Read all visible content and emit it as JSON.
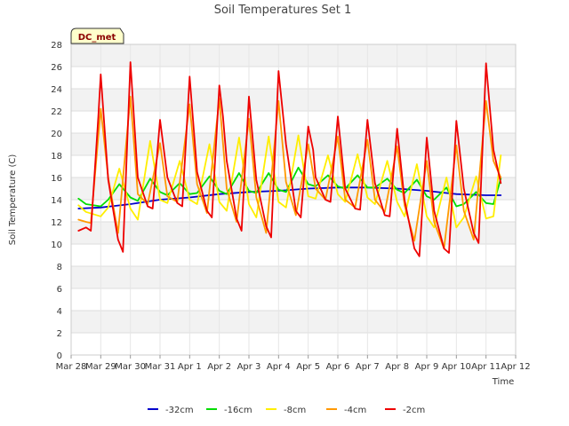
{
  "chart_data": {
    "type": "line",
    "title": "Soil Temperatures Set 1",
    "xlabel": "Time",
    "ylabel": "Soil Temperature (C)",
    "station_label": "DC_met",
    "ylim": [
      0,
      28
    ],
    "yticks": [
      0,
      2,
      4,
      6,
      8,
      10,
      12,
      14,
      16,
      18,
      20,
      22,
      24,
      26,
      28
    ],
    "xlim_days": [
      0,
      15
    ],
    "xtick_labels": [
      "Mar 28",
      "Mar 29",
      "Mar 30",
      "Mar 31",
      "Apr 1",
      "Apr 2",
      "Apr 3",
      "Apr 4",
      "Apr 5",
      "Apr 6",
      "Apr 7",
      "Apr 8",
      "Apr 9",
      "Apr 10",
      "Apr 11",
      "Apr 12"
    ],
    "grid": true,
    "legend_position": "bottom",
    "series": [
      {
        "name": "-32cm",
        "color": "#0000cc",
        "x": [
          "Mar 28 06:00",
          "Mar 29 00:00",
          "Mar 30 00:00",
          "Mar 31 00:00",
          "Apr 1 00:00",
          "Apr 2 00:00",
          "Apr 3 00:00",
          "Apr 4 00:00",
          "Apr 5 00:00",
          "Apr 6 00:00",
          "Apr 7 00:00",
          "Apr 8 00:00",
          "Apr 9 00:00",
          "Apr 10 00:00",
          "Apr 11 00:00",
          "Apr 11 12:00"
        ],
        "y": [
          13.2,
          13.3,
          13.6,
          14.0,
          14.2,
          14.5,
          14.7,
          14.8,
          15.0,
          15.1,
          15.1,
          15.0,
          14.8,
          14.5,
          14.4,
          14.4
        ]
      },
      {
        "name": "-16cm",
        "color": "#00dd00",
        "x": [
          "Mar 28 06:00",
          "Mar 28 12:00",
          "Mar 29 00:00",
          "Mar 29 06:00",
          "Mar 29 15:00",
          "Mar 30 00:00",
          "Mar 30 06:00",
          "Mar 30 16:00",
          "Mar 31 00:00",
          "Mar 31 06:00",
          "Mar 31 16:00",
          "Apr 1 00:00",
          "Apr 1 06:00",
          "Apr 1 16:00",
          "Apr 2 00:00",
          "Apr 2 06:00",
          "Apr 2 16:00",
          "Apr 3 00:00",
          "Apr 3 06:00",
          "Apr 3 16:00",
          "Apr 4 00:00",
          "Apr 4 06:00",
          "Apr 4 16:00",
          "Apr 5 00:00",
          "Apr 5 06:00",
          "Apr 5 16:00",
          "Apr 6 00:00",
          "Apr 6 06:00",
          "Apr 6 16:00",
          "Apr 7 00:00",
          "Apr 7 06:00",
          "Apr 7 16:00",
          "Apr 8 00:00",
          "Apr 8 06:00",
          "Apr 8 16:00",
          "Apr 9 00:00",
          "Apr 9 06:00",
          "Apr 9 16:00",
          "Apr 10 00:00",
          "Apr 10 06:00",
          "Apr 10 16:00",
          "Apr 11 00:00",
          "Apr 11 06:00",
          "Apr 11 12:00"
        ],
        "y": [
          14.1,
          13.6,
          13.4,
          14.0,
          15.4,
          14.2,
          13.9,
          15.9,
          14.7,
          14.4,
          15.5,
          14.5,
          14.6,
          16.1,
          14.8,
          14.5,
          16.4,
          14.8,
          14.6,
          16.4,
          14.9,
          14.7,
          16.9,
          15.4,
          15.2,
          16.2,
          15.2,
          15.0,
          16.2,
          15.1,
          15.1,
          15.9,
          14.9,
          14.6,
          15.8,
          14.3,
          14.0,
          15.1,
          13.4,
          13.6,
          14.7,
          13.7,
          13.6,
          15.9
        ]
      },
      {
        "name": "-8cm",
        "color": "#ffee00",
        "x": [
          "Mar 28 06:00",
          "Mar 28 12:00",
          "Mar 29 00:00",
          "Mar 29 06:00",
          "Mar 29 15:00",
          "Mar 30 00:00",
          "Mar 30 06:00",
          "Mar 30 16:00",
          "Mar 31 00:00",
          "Mar 31 06:00",
          "Mar 31 16:00",
          "Apr 1 00:00",
          "Apr 1 06:00",
          "Apr 1 16:00",
          "Apr 2 00:00",
          "Apr 2 06:00",
          "Apr 2 16:00",
          "Apr 3 00:00",
          "Apr 3 06:00",
          "Apr 3 16:00",
          "Apr 4 00:00",
          "Apr 4 06:00",
          "Apr 4 16:00",
          "Apr 5 00:00",
          "Apr 5 06:00",
          "Apr 5 16:00",
          "Apr 6 00:00",
          "Apr 6 06:00",
          "Apr 6 16:00",
          "Apr 7 00:00",
          "Apr 7 06:00",
          "Apr 7 16:00",
          "Apr 8 00:00",
          "Apr 8 06:00",
          "Apr 8 16:00",
          "Apr 9 00:00",
          "Apr 9 06:00",
          "Apr 9 16:00",
          "Apr 10 00:00",
          "Apr 10 06:00",
          "Apr 10 16:00",
          "Apr 11 00:00",
          "Apr 11 06:00",
          "Apr 11 12:00"
        ],
        "y": [
          13.5,
          12.9,
          12.5,
          13.3,
          16.8,
          13.2,
          12.2,
          19.3,
          14.0,
          13.7,
          17.5,
          14.0,
          13.6,
          19.0,
          13.8,
          13.0,
          19.6,
          13.6,
          12.4,
          19.7,
          13.8,
          13.3,
          19.8,
          14.3,
          14.1,
          18.0,
          14.5,
          13.8,
          18.1,
          14.2,
          13.6,
          17.5,
          13.8,
          12.5,
          17.2,
          12.5,
          11.5,
          16.0,
          11.5,
          12.4,
          16.1,
          12.3,
          12.5,
          18.0
        ]
      },
      {
        "name": "-4cm",
        "color": "#ff9900",
        "x": [
          "Mar 28 06:00",
          "Mar 28 12:00",
          "Mar 28 16:00",
          "Mar 29 00:00",
          "Mar 29 06:00",
          "Mar 29 14:00",
          "Mar 30 00:00",
          "Mar 30 06:00",
          "Mar 30 14:00",
          "Mar 31 00:00",
          "Mar 31 06:00",
          "Mar 31 14:00",
          "Apr 1 00:00",
          "Apr 1 06:00",
          "Apr 1 14:00",
          "Apr 2 00:00",
          "Apr 2 06:00",
          "Apr 2 14:00",
          "Apr 3 00:00",
          "Apr 3 06:00",
          "Apr 3 14:00",
          "Apr 4 00:00",
          "Apr 4 06:00",
          "Apr 4 14:00",
          "Apr 5 00:00",
          "Apr 5 06:00",
          "Apr 5 14:00",
          "Apr 6 00:00",
          "Apr 6 06:00",
          "Apr 6 14:00",
          "Apr 7 00:00",
          "Apr 7 06:00",
          "Apr 7 14:00",
          "Apr 8 00:00",
          "Apr 8 06:00",
          "Apr 8 14:00",
          "Apr 9 00:00",
          "Apr 9 06:00",
          "Apr 9 14:00",
          "Apr 10 00:00",
          "Apr 10 06:00",
          "Apr 10 14:00",
          "Apr 11 00:00",
          "Apr 11 06:00",
          "Apr 11 12:00"
        ],
        "y": [
          12.2,
          12.0,
          11.9,
          22.2,
          16.0,
          11.0,
          23.3,
          14.5,
          13.6,
          19.1,
          14.3,
          13.8,
          22.6,
          15.4,
          12.8,
          23.1,
          15.0,
          12.0,
          21.3,
          14.2,
          11.0,
          22.9,
          15.6,
          12.6,
          19.0,
          15.0,
          14.0,
          19.7,
          14.0,
          13.3,
          19.4,
          14.0,
          12.9,
          18.8,
          13.5,
          10.3,
          17.5,
          12.0,
          9.6,
          18.9,
          13.0,
          10.4,
          22.9,
          17.5,
          16.0
        ]
      },
      {
        "name": "-2cm",
        "color": "#ee0000",
        "x": [
          "Mar 28 06:00",
          "Mar 28 12:00",
          "Mar 28 16:00",
          "Mar 28 22:00",
          "Mar 29 00:00",
          "Mar 29 06:00",
          "Mar 29 14:00",
          "Mar 29 18:00",
          "Mar 30 00:00",
          "Mar 30 06:00",
          "Mar 30 14:00",
          "Mar 30 18:00",
          "Mar 31 00:00",
          "Mar 31 06:00",
          "Mar 31 14:00",
          "Mar 31 18:00",
          "Apr 1 00:00",
          "Apr 1 06:00",
          "Apr 1 14:00",
          "Apr 1 18:00",
          "Apr 2 00:00",
          "Apr 2 03:00",
          "Apr 2 06:00",
          "Apr 2 14:00",
          "Apr 2 18:00",
          "Apr 3 00:00",
          "Apr 3 06:00",
          "Apr 3 14:00",
          "Apr 3 18:00",
          "Apr 4 00:00",
          "Apr 4 06:00",
          "Apr 4 14:00",
          "Apr 4 18:00",
          "Apr 5 00:00",
          "Apr 5 04:00",
          "Apr 5 06:00",
          "Apr 5 14:00",
          "Apr 5 18:00",
          "Apr 6 00:00",
          "Apr 6 06:00",
          "Apr 6 14:00",
          "Apr 6 18:00",
          "Apr 7 00:00",
          "Apr 7 06:00",
          "Apr 7 14:00",
          "Apr 7 18:00",
          "Apr 8 00:00",
          "Apr 8 06:00",
          "Apr 8 14:00",
          "Apr 8 18:00",
          "Apr 9 00:00",
          "Apr 9 06:00",
          "Apr 9 14:00",
          "Apr 9 18:00",
          "Apr 10 00:00",
          "Apr 10 06:00",
          "Apr 10 14:00",
          "Apr 10 18:00",
          "Apr 11 00:00",
          "Apr 11 06:00",
          "Apr 11 12:00"
        ],
        "y": [
          11.2,
          11.5,
          11.2,
          21.5,
          25.3,
          15.8,
          10.4,
          9.3,
          26.4,
          16.0,
          13.4,
          13.2,
          21.2,
          16.0,
          13.7,
          13.4,
          25.1,
          16.5,
          13.0,
          12.4,
          24.3,
          21.5,
          17.5,
          12.3,
          11.2,
          23.3,
          15.8,
          11.6,
          10.6,
          25.6,
          19.0,
          13.0,
          12.4,
          20.6,
          18.5,
          16.0,
          14.0,
          13.8,
          21.5,
          15.0,
          13.2,
          13.1,
          21.2,
          15.5,
          12.6,
          12.5,
          20.4,
          14.0,
          9.6,
          8.9,
          19.6,
          13.0,
          9.6,
          9.2,
          21.1,
          15.0,
          11.0,
          10.1,
          26.3,
          18.5,
          15.5
        ]
      }
    ]
  }
}
